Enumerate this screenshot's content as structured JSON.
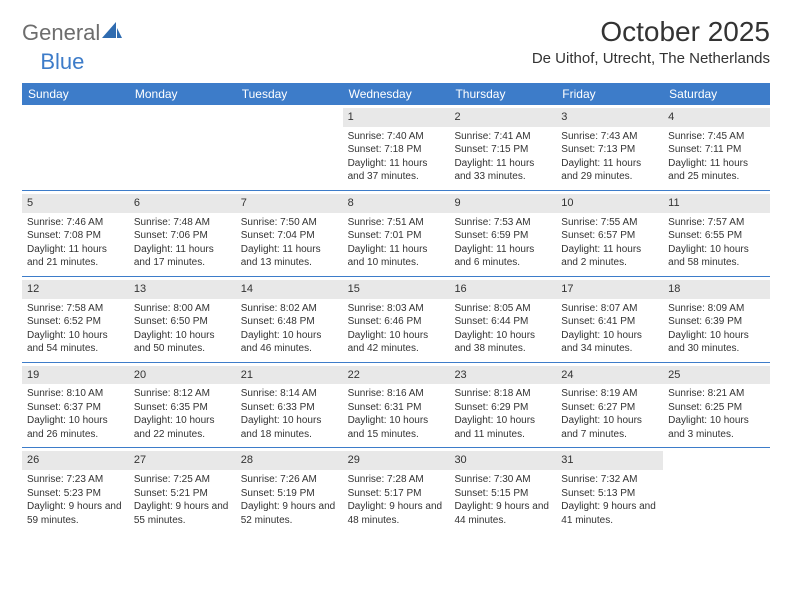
{
  "brand": {
    "g": "General",
    "b": "Blue"
  },
  "title": {
    "month_year": "October 2025",
    "location": "De Uithof, Utrecht, The Netherlands"
  },
  "colors": {
    "accent": "#3d7cc9",
    "day_bg": "#e8e8e8",
    "text": "#333333",
    "logo_gray": "#6d6d6d"
  },
  "weekdays": [
    "Sunday",
    "Monday",
    "Tuesday",
    "Wednesday",
    "Thursday",
    "Friday",
    "Saturday"
  ],
  "weeks": [
    [
      {
        "day": "",
        "sunrise": "",
        "sunset": "",
        "daylight": ""
      },
      {
        "day": "",
        "sunrise": "",
        "sunset": "",
        "daylight": ""
      },
      {
        "day": "",
        "sunrise": "",
        "sunset": "",
        "daylight": ""
      },
      {
        "day": "1",
        "sunrise": "Sunrise: 7:40 AM",
        "sunset": "Sunset: 7:18 PM",
        "daylight": "Daylight: 11 hours and 37 minutes."
      },
      {
        "day": "2",
        "sunrise": "Sunrise: 7:41 AM",
        "sunset": "Sunset: 7:15 PM",
        "daylight": "Daylight: 11 hours and 33 minutes."
      },
      {
        "day": "3",
        "sunrise": "Sunrise: 7:43 AM",
        "sunset": "Sunset: 7:13 PM",
        "daylight": "Daylight: 11 hours and 29 minutes."
      },
      {
        "day": "4",
        "sunrise": "Sunrise: 7:45 AM",
        "sunset": "Sunset: 7:11 PM",
        "daylight": "Daylight: 11 hours and 25 minutes."
      }
    ],
    [
      {
        "day": "5",
        "sunrise": "Sunrise: 7:46 AM",
        "sunset": "Sunset: 7:08 PM",
        "daylight": "Daylight: 11 hours and 21 minutes."
      },
      {
        "day": "6",
        "sunrise": "Sunrise: 7:48 AM",
        "sunset": "Sunset: 7:06 PM",
        "daylight": "Daylight: 11 hours and 17 minutes."
      },
      {
        "day": "7",
        "sunrise": "Sunrise: 7:50 AM",
        "sunset": "Sunset: 7:04 PM",
        "daylight": "Daylight: 11 hours and 13 minutes."
      },
      {
        "day": "8",
        "sunrise": "Sunrise: 7:51 AM",
        "sunset": "Sunset: 7:01 PM",
        "daylight": "Daylight: 11 hours and 10 minutes."
      },
      {
        "day": "9",
        "sunrise": "Sunrise: 7:53 AM",
        "sunset": "Sunset: 6:59 PM",
        "daylight": "Daylight: 11 hours and 6 minutes."
      },
      {
        "day": "10",
        "sunrise": "Sunrise: 7:55 AM",
        "sunset": "Sunset: 6:57 PM",
        "daylight": "Daylight: 11 hours and 2 minutes."
      },
      {
        "day": "11",
        "sunrise": "Sunrise: 7:57 AM",
        "sunset": "Sunset: 6:55 PM",
        "daylight": "Daylight: 10 hours and 58 minutes."
      }
    ],
    [
      {
        "day": "12",
        "sunrise": "Sunrise: 7:58 AM",
        "sunset": "Sunset: 6:52 PM",
        "daylight": "Daylight: 10 hours and 54 minutes."
      },
      {
        "day": "13",
        "sunrise": "Sunrise: 8:00 AM",
        "sunset": "Sunset: 6:50 PM",
        "daylight": "Daylight: 10 hours and 50 minutes."
      },
      {
        "day": "14",
        "sunrise": "Sunrise: 8:02 AM",
        "sunset": "Sunset: 6:48 PM",
        "daylight": "Daylight: 10 hours and 46 minutes."
      },
      {
        "day": "15",
        "sunrise": "Sunrise: 8:03 AM",
        "sunset": "Sunset: 6:46 PM",
        "daylight": "Daylight: 10 hours and 42 minutes."
      },
      {
        "day": "16",
        "sunrise": "Sunrise: 8:05 AM",
        "sunset": "Sunset: 6:44 PM",
        "daylight": "Daylight: 10 hours and 38 minutes."
      },
      {
        "day": "17",
        "sunrise": "Sunrise: 8:07 AM",
        "sunset": "Sunset: 6:41 PM",
        "daylight": "Daylight: 10 hours and 34 minutes."
      },
      {
        "day": "18",
        "sunrise": "Sunrise: 8:09 AM",
        "sunset": "Sunset: 6:39 PM",
        "daylight": "Daylight: 10 hours and 30 minutes."
      }
    ],
    [
      {
        "day": "19",
        "sunrise": "Sunrise: 8:10 AM",
        "sunset": "Sunset: 6:37 PM",
        "daylight": "Daylight: 10 hours and 26 minutes."
      },
      {
        "day": "20",
        "sunrise": "Sunrise: 8:12 AM",
        "sunset": "Sunset: 6:35 PM",
        "daylight": "Daylight: 10 hours and 22 minutes."
      },
      {
        "day": "21",
        "sunrise": "Sunrise: 8:14 AM",
        "sunset": "Sunset: 6:33 PM",
        "daylight": "Daylight: 10 hours and 18 minutes."
      },
      {
        "day": "22",
        "sunrise": "Sunrise: 8:16 AM",
        "sunset": "Sunset: 6:31 PM",
        "daylight": "Daylight: 10 hours and 15 minutes."
      },
      {
        "day": "23",
        "sunrise": "Sunrise: 8:18 AM",
        "sunset": "Sunset: 6:29 PM",
        "daylight": "Daylight: 10 hours and 11 minutes."
      },
      {
        "day": "24",
        "sunrise": "Sunrise: 8:19 AM",
        "sunset": "Sunset: 6:27 PM",
        "daylight": "Daylight: 10 hours and 7 minutes."
      },
      {
        "day": "25",
        "sunrise": "Sunrise: 8:21 AM",
        "sunset": "Sunset: 6:25 PM",
        "daylight": "Daylight: 10 hours and 3 minutes."
      }
    ],
    [
      {
        "day": "26",
        "sunrise": "Sunrise: 7:23 AM",
        "sunset": "Sunset: 5:23 PM",
        "daylight": "Daylight: 9 hours and 59 minutes."
      },
      {
        "day": "27",
        "sunrise": "Sunrise: 7:25 AM",
        "sunset": "Sunset: 5:21 PM",
        "daylight": "Daylight: 9 hours and 55 minutes."
      },
      {
        "day": "28",
        "sunrise": "Sunrise: 7:26 AM",
        "sunset": "Sunset: 5:19 PM",
        "daylight": "Daylight: 9 hours and 52 minutes."
      },
      {
        "day": "29",
        "sunrise": "Sunrise: 7:28 AM",
        "sunset": "Sunset: 5:17 PM",
        "daylight": "Daylight: 9 hours and 48 minutes."
      },
      {
        "day": "30",
        "sunrise": "Sunrise: 7:30 AM",
        "sunset": "Sunset: 5:15 PM",
        "daylight": "Daylight: 9 hours and 44 minutes."
      },
      {
        "day": "31",
        "sunrise": "Sunrise: 7:32 AM",
        "sunset": "Sunset: 5:13 PM",
        "daylight": "Daylight: 9 hours and 41 minutes."
      },
      {
        "day": "",
        "sunrise": "",
        "sunset": "",
        "daylight": ""
      }
    ]
  ]
}
